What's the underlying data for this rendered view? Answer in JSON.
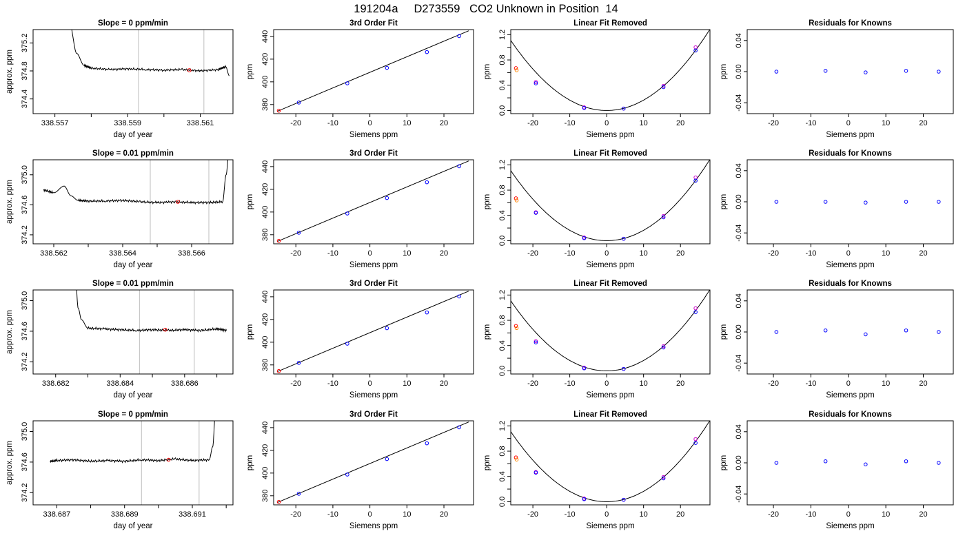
{
  "page_title": "191204a     D273559   CO2 Unknown in Position  14",
  "colors": {
    "line": "#000000",
    "vline": "#bebebe",
    "known": "#0000ff",
    "unknown": "#ff0000",
    "reference": "#cc00cc",
    "frame": "#000000"
  },
  "chart_data": [
    {
      "type": "line",
      "title": "Slope =  0  ppm/min",
      "xlabel": "day of year",
      "ylabel": "approx. ppm",
      "xlim": [
        338.5564,
        338.5619
      ],
      "ylim": [
        374.19,
        375.39
      ],
      "xticks": [
        338.557,
        338.558,
        338.559,
        338.56,
        338.561
      ],
      "xtick_labels": [
        "338.557",
        "",
        "338.559",
        "",
        "338.561"
      ],
      "yticks": [
        374.4,
        374.8,
        375.2
      ],
      "ytick_labels": [
        "374.4",
        "374.8",
        "375.2"
      ],
      "vlines": [
        338.5593,
        338.5611
      ],
      "x": [
        338.5574,
        338.5576,
        338.5578,
        338.558,
        338.5585,
        338.559,
        338.5595,
        338.56,
        338.5605,
        338.561,
        338.5615,
        338.5617,
        338.5618
      ],
      "y": [
        375.5,
        375.05,
        374.88,
        374.84,
        374.82,
        374.83,
        374.82,
        374.81,
        374.82,
        374.8,
        374.82,
        374.86,
        374.73
      ],
      "marker": {
        "x": 338.5607,
        "y": 374.81
      }
    },
    {
      "type": "scatter",
      "title": "3rd Order Fit",
      "xlabel": "Siemens ppm",
      "ylabel": "ppm",
      "xlim": [
        -26,
        28
      ],
      "ylim": [
        372,
        446
      ],
      "xticks": [
        -20,
        -10,
        0,
        10,
        20
      ],
      "yticks": [
        380,
        400,
        420,
        440
      ],
      "knowns": {
        "x": [
          -19.2,
          -6.1,
          4.6,
          15.4,
          24.1
        ],
        "y": [
          381.8,
          398.7,
          412.3,
          426.2,
          440.3
        ]
      },
      "unknown": {
        "x": -24.6,
        "y": 374.6
      },
      "fit": {
        "x1": -25,
        "y1": 374.1,
        "x2": 26.7,
        "y2": 445.0
      }
    },
    {
      "type": "scatter",
      "title": "Linear Fit Removed",
      "xlabel": "Siemens ppm",
      "ylabel": "ppm",
      "xlim": [
        -26,
        28
      ],
      "ylim": [
        -0.05,
        1.28
      ],
      "xticks": [
        -20,
        -10,
        0,
        10,
        20
      ],
      "yticks": [
        0,
        0.2,
        0.4,
        0.6,
        0.8,
        1.0,
        1.2
      ],
      "ytick_labels": [
        "0.0",
        "",
        "0.4",
        "",
        "0.8",
        "",
        "1.2"
      ],
      "knowns": {
        "x": [
          -19.2,
          -6.1,
          4.6,
          15.4,
          24.1
        ],
        "y": [
          0.43,
          0.04,
          0.03,
          0.37,
          0.95
        ]
      },
      "refs": {
        "x": [
          -19.2,
          -6.1,
          4.6,
          15.4,
          24.1
        ],
        "y": [
          0.45,
          0.05,
          0.03,
          0.39,
          1.0
        ]
      },
      "unknown": {
        "x": -24.6,
        "y": 0.67
      },
      "curve_coef": 0.00164
    },
    {
      "type": "scatter",
      "title": "Residuals for Knowns",
      "xlabel": "Siemens ppm",
      "ylabel": "ppm",
      "xlim": [
        -27,
        28
      ],
      "ylim": [
        -0.054,
        0.054
      ],
      "xticks": [
        -20,
        -10,
        0,
        10,
        20
      ],
      "yticks": [
        -0.04,
        0,
        0.04
      ],
      "ytick_labels": [
        "-0.04",
        "0.00",
        "0.04"
      ],
      "x": [
        -19.2,
        -6.1,
        4.6,
        15.4,
        24.1
      ],
      "y": [
        0.0,
        0.001,
        -0.001,
        0.001,
        0.0
      ]
    },
    {
      "type": "line",
      "title": "Slope =  0.01  ppm/min",
      "xlabel": "day of year",
      "ylabel": "approx. ppm",
      "xlim": [
        338.5614,
        338.5672
      ],
      "ylim": [
        374.08,
        375.2
      ],
      "xticks": [
        338.562,
        338.563,
        338.564,
        338.565,
        338.566
      ],
      "xtick_labels": [
        "338.562",
        "",
        "338.564",
        "",
        "338.566"
      ],
      "yticks": [
        374.2,
        374.6,
        375.0
      ],
      "ytick_labels": [
        "374.2",
        "374.6",
        "375.0"
      ],
      "vlines": [
        338.5648,
        338.5665
      ],
      "x": [
        338.5617,
        338.562,
        338.5623,
        338.5625,
        338.5627,
        338.563,
        338.5635,
        338.564,
        338.5645,
        338.565,
        338.5655,
        338.566,
        338.5665,
        338.5669,
        338.567,
        338.5671
      ],
      "y": [
        374.8,
        374.76,
        374.85,
        374.72,
        374.66,
        374.65,
        374.65,
        374.66,
        374.64,
        374.63,
        374.64,
        374.63,
        374.63,
        374.64,
        375.0,
        375.4
      ],
      "marker": {
        "x": 338.5656,
        "y": 374.64
      }
    },
    {
      "type": "scatter",
      "title": "3rd Order Fit",
      "xlabel": "Siemens ppm",
      "ylabel": "ppm",
      "xlim": [
        -26,
        28
      ],
      "ylim": [
        372,
        446
      ],
      "xticks": [
        -20,
        -10,
        0,
        10,
        20
      ],
      "yticks": [
        380,
        400,
        420,
        440
      ],
      "knowns": {
        "x": [
          -19.2,
          -6.1,
          4.6,
          15.4,
          24.1
        ],
        "y": [
          381.8,
          398.7,
          412.3,
          426.2,
          440.3
        ]
      },
      "unknown": {
        "x": -24.6,
        "y": 374.6
      },
      "fit": {
        "x1": -25,
        "y1": 374.1,
        "x2": 26.7,
        "y2": 445.0
      }
    },
    {
      "type": "scatter",
      "title": "Linear Fit Removed",
      "xlabel": "Siemens ppm",
      "ylabel": "ppm",
      "xlim": [
        -26,
        28
      ],
      "ylim": [
        -0.05,
        1.28
      ],
      "xticks": [
        -20,
        -10,
        0,
        10,
        20
      ],
      "yticks": [
        0,
        0.2,
        0.4,
        0.6,
        0.8,
        1.0,
        1.2
      ],
      "ytick_labels": [
        "0.0",
        "",
        "0.4",
        "",
        "0.8",
        "",
        "1.2"
      ],
      "knowns": {
        "x": [
          -19.2,
          -6.1,
          4.6,
          15.4,
          24.1
        ],
        "y": [
          0.44,
          0.04,
          0.03,
          0.37,
          0.95
        ]
      },
      "refs": {
        "x": [
          -19.2,
          -6.1,
          4.6,
          15.4,
          24.1
        ],
        "y": [
          0.45,
          0.05,
          0.03,
          0.39,
          1.0
        ]
      },
      "unknown": {
        "x": -24.6,
        "y": 0.67
      },
      "curve_coef": 0.00164
    },
    {
      "type": "scatter",
      "title": "Residuals for Knowns",
      "xlabel": "Siemens ppm",
      "ylabel": "ppm",
      "xlim": [
        -27,
        28
      ],
      "ylim": [
        -0.054,
        0.054
      ],
      "xticks": [
        -20,
        -10,
        0,
        10,
        20
      ],
      "yticks": [
        -0.04,
        0,
        0.04
      ],
      "ytick_labels": [
        "-0.04",
        "0.00",
        "0.04"
      ],
      "x": [
        -19.2,
        -6.1,
        4.6,
        15.4,
        24.1
      ],
      "y": [
        0.0,
        0.0,
        -0.001,
        0.0,
        0.0
      ]
    },
    {
      "type": "line",
      "title": "Slope =  0.01  ppm/min",
      "xlabel": "day of year",
      "ylabel": "approx. ppm",
      "xlim": [
        338.6813,
        338.6875
      ],
      "ylim": [
        374.04,
        375.14
      ],
      "xticks": [
        338.682,
        338.683,
        338.684,
        338.685,
        338.686,
        338.687
      ],
      "xtick_labels": [
        "338.682",
        "",
        "338.684",
        "",
        "338.686",
        ""
      ],
      "yticks": [
        374.2,
        374.6,
        375.0
      ],
      "ytick_labels": [
        "374.2",
        "374.6",
        "375.0"
      ],
      "vlines": [
        338.6846,
        338.6863
      ],
      "x": [
        338.6826,
        338.6827,
        338.6828,
        338.683,
        338.6835,
        338.684,
        338.6845,
        338.685,
        338.6855,
        338.686,
        338.6865,
        338.687,
        338.6873
      ],
      "y": [
        375.4,
        374.9,
        374.75,
        374.64,
        374.63,
        374.62,
        374.61,
        374.62,
        374.61,
        374.62,
        374.61,
        374.63,
        374.61
      ],
      "marker": {
        "x": 338.6854,
        "y": 374.62
      }
    },
    {
      "type": "scatter",
      "title": "3rd Order Fit",
      "xlabel": "Siemens ppm",
      "ylabel": "ppm",
      "xlim": [
        -26,
        28
      ],
      "ylim": [
        372,
        446
      ],
      "xticks": [
        -20,
        -10,
        0,
        10,
        20
      ],
      "yticks": [
        380,
        400,
        420,
        440
      ],
      "knowns": {
        "x": [
          -19.2,
          -6.1,
          4.6,
          15.4,
          24.1
        ],
        "y": [
          381.8,
          398.7,
          412.3,
          426.2,
          440.3
        ]
      },
      "unknown": {
        "x": -24.6,
        "y": 374.6
      },
      "fit": {
        "x1": -25,
        "y1": 374.1,
        "x2": 26.7,
        "y2": 445.0
      }
    },
    {
      "type": "scatter",
      "title": "Linear Fit Removed",
      "xlabel": "Siemens ppm",
      "ylabel": "ppm",
      "xlim": [
        -26,
        28
      ],
      "ylim": [
        -0.05,
        1.28
      ],
      "xticks": [
        -20,
        -10,
        0,
        10,
        20
      ],
      "yticks": [
        0,
        0.2,
        0.4,
        0.6,
        0.8,
        1.0,
        1.2
      ],
      "ytick_labels": [
        "0.0",
        "",
        "0.4",
        "",
        "0.8",
        "",
        "1.2"
      ],
      "knowns": {
        "x": [
          -19.2,
          -6.1,
          4.6,
          15.4,
          24.1
        ],
        "y": [
          0.45,
          0.04,
          0.03,
          0.37,
          0.93
        ]
      },
      "refs": {
        "x": [
          -19.2,
          -6.1,
          4.6,
          15.4,
          24.1
        ],
        "y": [
          0.47,
          0.05,
          0.03,
          0.39,
          0.99
        ]
      },
      "unknown": {
        "x": -24.6,
        "y": 0.71
      },
      "curve_coef": 0.00164
    },
    {
      "type": "scatter",
      "title": "Residuals for Knowns",
      "xlabel": "Siemens ppm",
      "ylabel": "ppm",
      "xlim": [
        -27,
        28
      ],
      "ylim": [
        -0.054,
        0.054
      ],
      "xticks": [
        -20,
        -10,
        0,
        10,
        20
      ],
      "yticks": [
        -0.04,
        0,
        0.04
      ],
      "ytick_labels": [
        "-0.04",
        "0.00",
        "0.04"
      ],
      "x": [
        -19.2,
        -6.1,
        4.6,
        15.4,
        24.1
      ],
      "y": [
        0.0,
        0.002,
        -0.003,
        0.002,
        0.0
      ]
    },
    {
      "type": "line",
      "title": "Slope =  0  ppm/min",
      "xlabel": "day of year",
      "ylabel": "approx. ppm",
      "xlim": [
        338.6863,
        338.6922
      ],
      "ylim": [
        374.04,
        375.14
      ],
      "xticks": [
        338.687,
        338.688,
        338.689,
        338.69,
        338.691,
        338.692
      ],
      "xtick_labels": [
        "338.687",
        "",
        "338.689",
        "",
        "338.691",
        ""
      ],
      "yticks": [
        374.2,
        374.6,
        375.0
      ],
      "ytick_labels": [
        "374.2",
        "374.6",
        "375.0"
      ],
      "vlines": [
        338.6895,
        338.6912
      ],
      "x": [
        338.6868,
        338.687,
        338.6875,
        338.688,
        338.6885,
        338.689,
        338.6895,
        338.69,
        338.6905,
        338.691,
        338.6915,
        338.6916,
        338.6917
      ],
      "y": [
        374.61,
        374.62,
        374.63,
        374.61,
        374.62,
        374.61,
        374.63,
        374.62,
        374.64,
        374.62,
        374.63,
        374.8,
        375.4
      ],
      "marker": {
        "x": 338.6903,
        "y": 374.63
      }
    },
    {
      "type": "scatter",
      "title": "3rd Order Fit",
      "xlabel": "Siemens ppm",
      "ylabel": "ppm",
      "xlim": [
        -26,
        28
      ],
      "ylim": [
        372,
        446
      ],
      "xticks": [
        -20,
        -10,
        0,
        10,
        20
      ],
      "yticks": [
        380,
        400,
        420,
        440
      ],
      "knowns": {
        "x": [
          -19.2,
          -6.1,
          4.6,
          15.4,
          24.1
        ],
        "y": [
          381.8,
          398.7,
          412.3,
          426.2,
          440.3
        ]
      },
      "unknown": {
        "x": -24.6,
        "y": 374.6
      },
      "fit": {
        "x1": -25,
        "y1": 374.1,
        "x2": 26.7,
        "y2": 445.0
      }
    },
    {
      "type": "scatter",
      "title": "Linear Fit Removed",
      "xlabel": "Siemens ppm",
      "ylabel": "ppm",
      "xlim": [
        -26,
        28
      ],
      "ylim": [
        -0.05,
        1.28
      ],
      "xticks": [
        -20,
        -10,
        0,
        10,
        20
      ],
      "yticks": [
        0,
        0.2,
        0.4,
        0.6,
        0.8,
        1.0,
        1.2
      ],
      "ytick_labels": [
        "0.0",
        "",
        "0.4",
        "",
        "0.8",
        "",
        "1.2"
      ],
      "knowns": {
        "x": [
          -19.2,
          -6.1,
          4.6,
          15.4,
          24.1
        ],
        "y": [
          0.46,
          0.04,
          0.03,
          0.37,
          0.93
        ]
      },
      "refs": {
        "x": [
          -19.2,
          -6.1,
          4.6,
          15.4,
          24.1
        ],
        "y": [
          0.47,
          0.05,
          0.03,
          0.39,
          0.99
        ]
      },
      "unknown": {
        "x": -24.6,
        "y": 0.7
      },
      "curve_coef": 0.00164
    },
    {
      "type": "scatter",
      "title": "Residuals for Knowns",
      "xlabel": "Siemens ppm",
      "ylabel": "ppm",
      "xlim": [
        -27,
        28
      ],
      "ylim": [
        -0.054,
        0.054
      ],
      "xticks": [
        -20,
        -10,
        0,
        10,
        20
      ],
      "yticks": [
        -0.04,
        0,
        0.04
      ],
      "ytick_labels": [
        "-0.04",
        "0.00",
        "0.04"
      ],
      "x": [
        -19.2,
        -6.1,
        4.6,
        15.4,
        24.1
      ],
      "y": [
        0.0,
        0.002,
        -0.002,
        0.002,
        0.0
      ]
    }
  ]
}
